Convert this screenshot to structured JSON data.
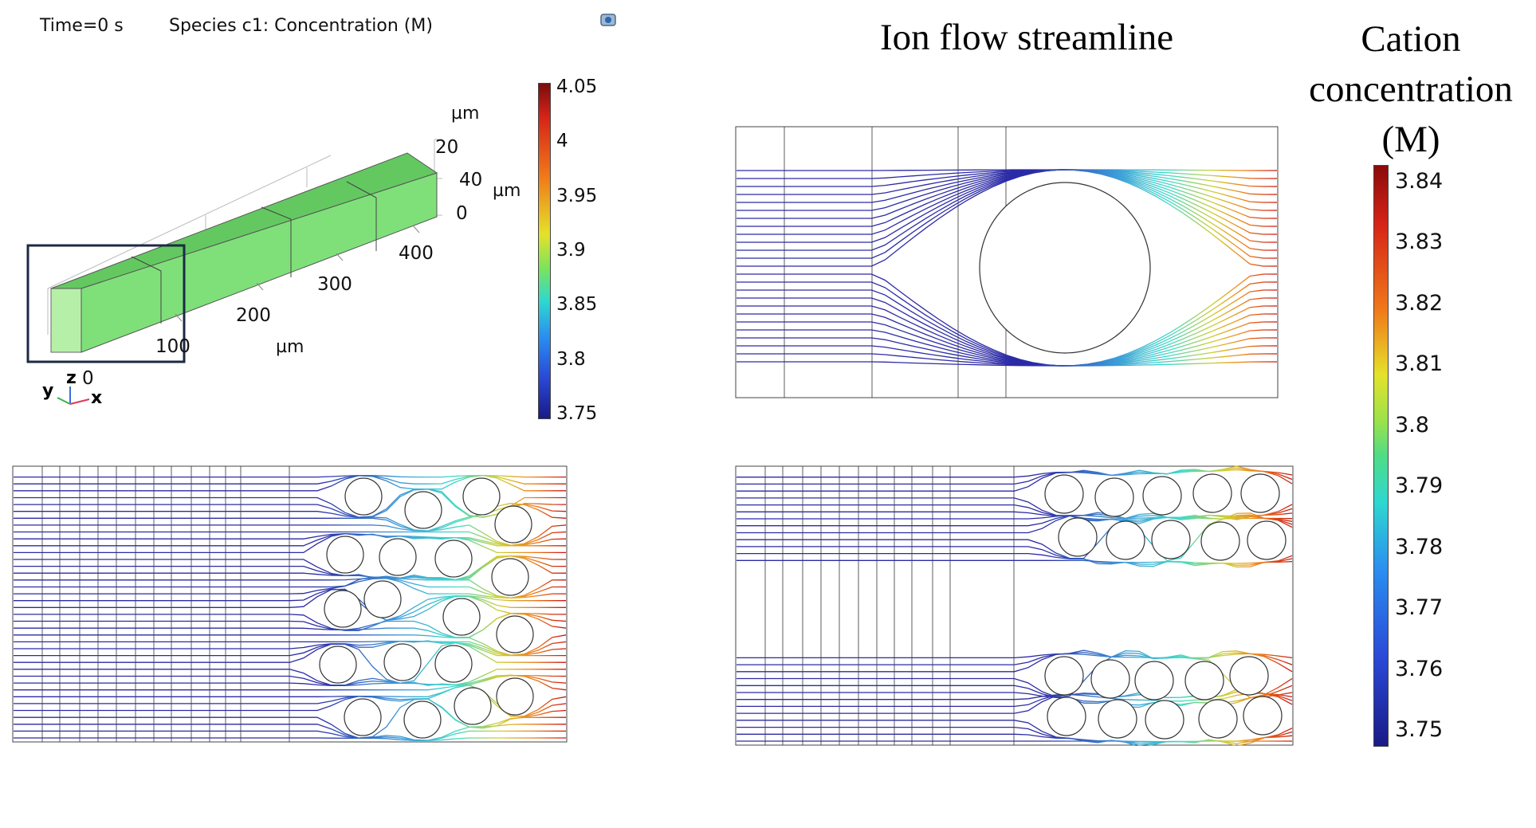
{
  "header": {
    "time_label": "Time=0 s",
    "species_label": "Species c1:  Concentration (M)"
  },
  "view3d": {
    "axis_z_ticks": [
      "20",
      "40",
      "0"
    ],
    "axis_z_unit": "µm",
    "axis_y_unit": "µm",
    "axis_x_ticks": [
      "400",
      "300",
      "200",
      "100",
      "0"
    ],
    "axis_x_unit": "µm",
    "triad": {
      "y": "y",
      "z": "z",
      "x": "x"
    }
  },
  "colorbar_left": {
    "ticks": [
      "4.05",
      "4",
      "3.95",
      "3.9",
      "3.85",
      "3.8",
      "3.75"
    ]
  },
  "titles": {
    "streamline": "Ion flow streamline",
    "cation_line1": "Cation",
    "cation_line2": "concentration",
    "cation_line3": "(M)"
  },
  "colorbar_right": {
    "ticks": [
      "3.84",
      "3.83",
      "3.82",
      "3.81",
      "3.8",
      "3.79",
      "3.78",
      "3.77",
      "3.76",
      "3.75"
    ]
  },
  "colors": {
    "low": "#2b2aa6",
    "mid": "#3fd8c8",
    "high": "#c9140e",
    "box_fill": "#7ee07a",
    "frame": "#1c2a44"
  }
}
